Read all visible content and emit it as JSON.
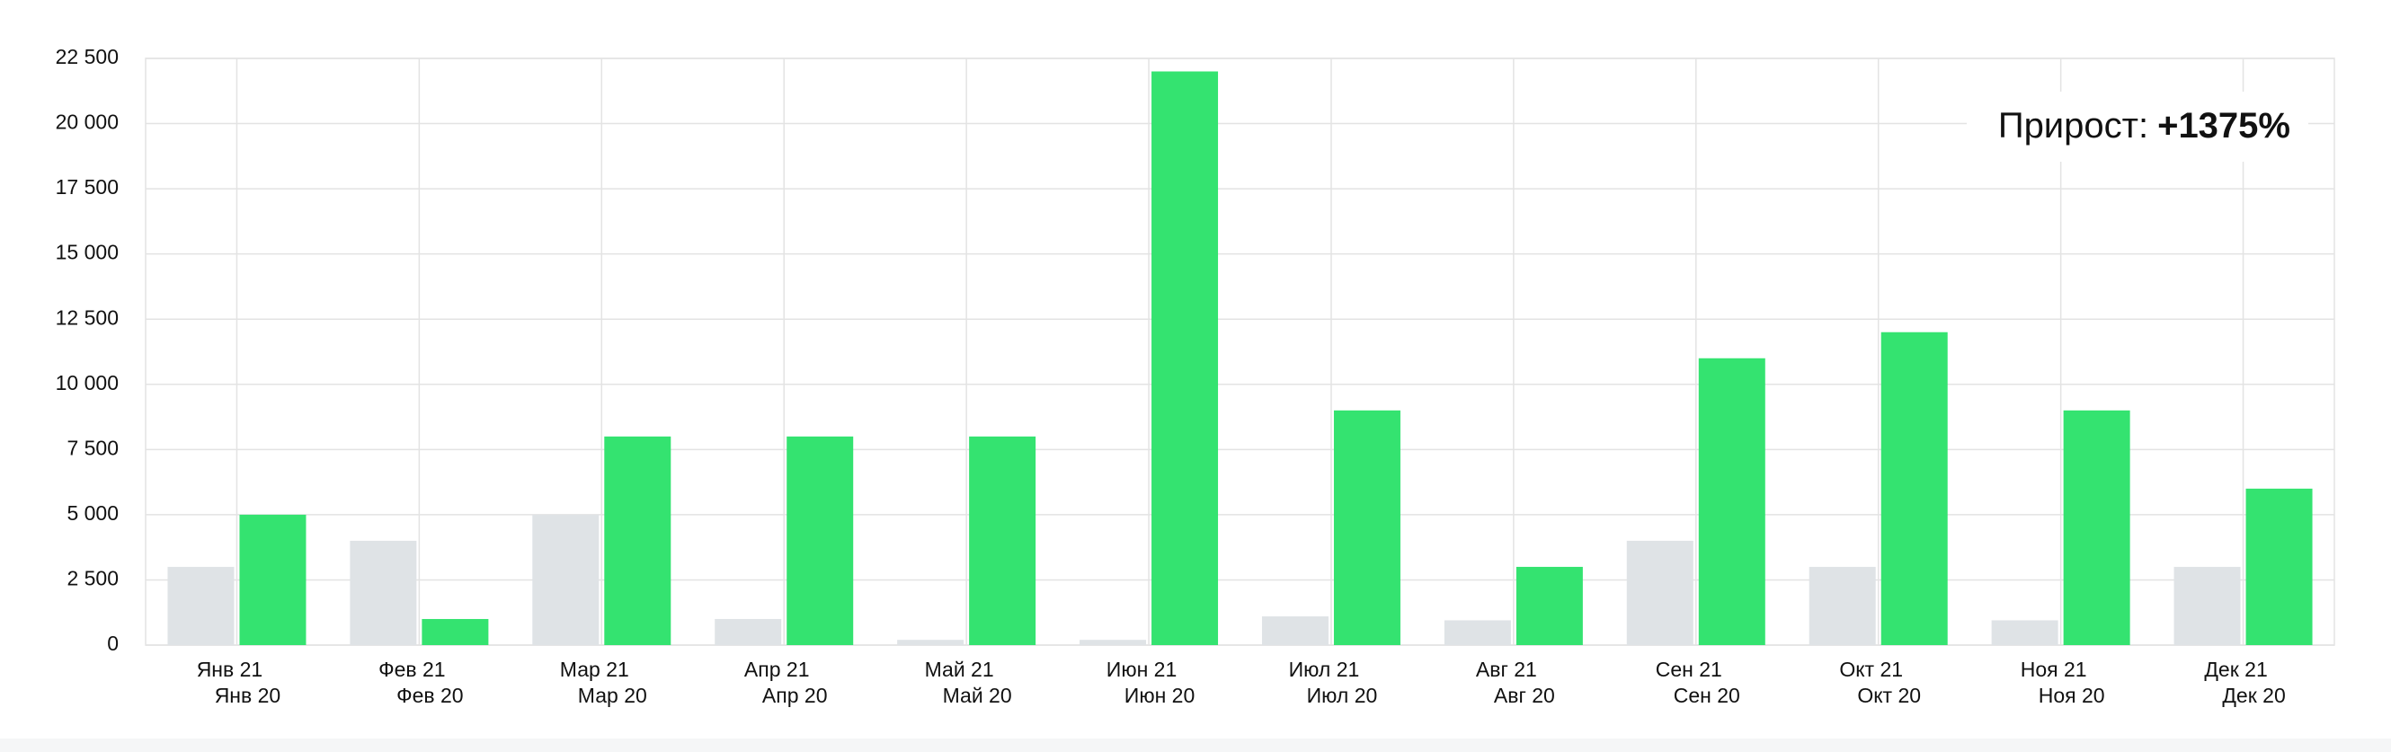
{
  "chart_data": {
    "type": "bar",
    "categories": [
      [
        "Янв 21",
        "Янв 20"
      ],
      [
        "Фев 21",
        "Фев 20"
      ],
      [
        "Мар 21",
        "Мар 20"
      ],
      [
        "Апр 21",
        "Апр 20"
      ],
      [
        "Май 21",
        "Май 20"
      ],
      [
        "Июн 21",
        "Июн 20"
      ],
      [
        "Июл 21",
        "Июл 20"
      ],
      [
        "Авг 21",
        "Авг 20"
      ],
      [
        "Сен 21",
        "Сен 20"
      ],
      [
        "Окт 21",
        "Окт 20"
      ],
      [
        "Ноя 21",
        "Ноя 20"
      ],
      [
        "Дек 21",
        "Дек 20"
      ]
    ],
    "series": [
      {
        "color": "#dfe3e6",
        "values": [
          3000,
          4000,
          5000,
          1000,
          200,
          200,
          1100,
          950,
          4000,
          3000,
          950,
          3000
        ]
      },
      {
        "color": "#34e370",
        "values": [
          5000,
          1000,
          8000,
          8000,
          8000,
          22000,
          9000,
          3000,
          11000,
          12000,
          9000,
          6000
        ]
      }
    ],
    "ylim": [
      0,
      22500
    ],
    "yticks": [
      0,
      {
        "value": 2500,
        "label": "2 500"
      },
      {
        "value": 5000,
        "label": "5 000"
      },
      {
        "value": 7500,
        "label": "7 500"
      },
      {
        "value": 10000,
        "label": "10 000"
      },
      {
        "value": 12500,
        "label": "12 500"
      },
      {
        "value": 15000,
        "label": "15 000"
      },
      {
        "value": 17500,
        "label": "17 500"
      },
      {
        "value": 20000,
        "label": "20 000"
      },
      {
        "value": 22500,
        "label": "22 500"
      }
    ],
    "grid": true,
    "annotation": {
      "label": "Прирост:",
      "value": "+1375%"
    }
  }
}
